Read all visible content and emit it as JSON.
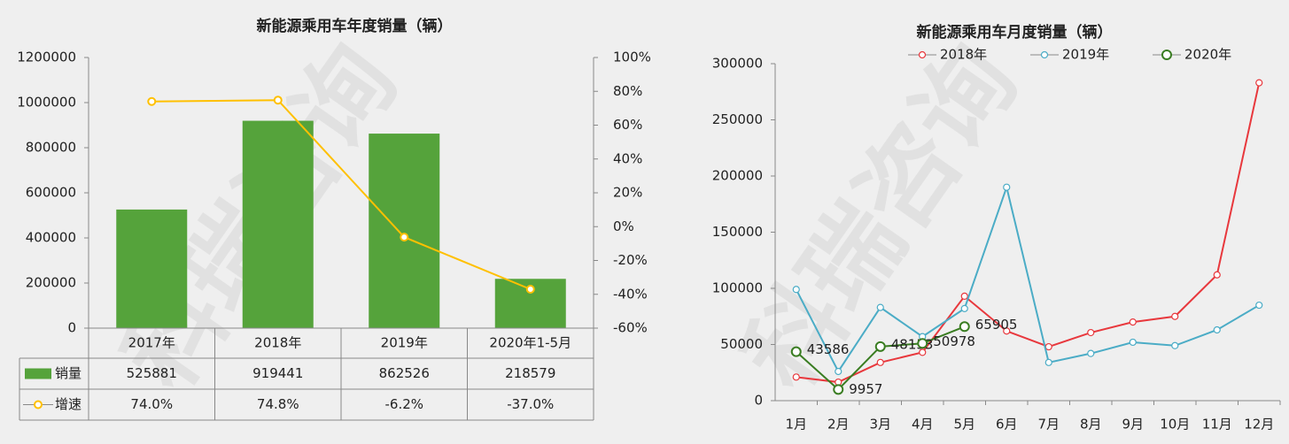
{
  "watermark": "科瑞咨询",
  "chart_data": [
    {
      "type": "bar",
      "title": "新能源乘用车年度销量（辆）",
      "categories": [
        "2017年",
        "2018年",
        "2019年",
        "2020年1-5月"
      ],
      "series": [
        {
          "name": "销量",
          "type": "bar",
          "color": "#55a33b",
          "values": [
            525881,
            919441,
            862526,
            218579
          ]
        },
        {
          "name": "增速",
          "type": "line",
          "axis": "y2",
          "color": "#ffc000",
          "values": [
            74.0,
            74.8,
            -6.2,
            -37.0
          ],
          "value_labels": [
            "74.0%",
            "74.8%",
            "-6.2%",
            "-37.0%"
          ]
        }
      ],
      "ylim": [
        0,
        1200000
      ],
      "yticks": [
        0,
        200000,
        400000,
        600000,
        800000,
        1000000,
        1200000
      ],
      "y2lim": [
        -60,
        100
      ],
      "y2ticks": [
        {
          "value": -60,
          "label": "-60%"
        },
        {
          "value": -40,
          "label": "-40%"
        },
        {
          "value": -20,
          "label": "-20%"
        },
        {
          "value": 0,
          "label": "0%"
        },
        {
          "value": 20,
          "label": "20%"
        },
        {
          "value": 40,
          "label": "40%"
        },
        {
          "value": 60,
          "label": "60%"
        },
        {
          "value": 80,
          "label": "80%"
        },
        {
          "value": 100,
          "label": "100%"
        }
      ],
      "data_table": true,
      "grid": false
    },
    {
      "type": "line",
      "title": "新能源乘用车月度销量（辆）",
      "categories": [
        "1月",
        "2月",
        "3月",
        "4月",
        "5月",
        "6月",
        "7月",
        "8月",
        "9月",
        "10月",
        "11月",
        "12月"
      ],
      "series": [
        {
          "name": "2018年",
          "color": "#e8383d",
          "values": [
            21000,
            16500,
            34000,
            43000,
            93000,
            62000,
            48000,
            60600,
            70000,
            75000,
            112000,
            283000
          ]
        },
        {
          "name": "2019年",
          "color": "#4bacc6",
          "values": [
            99000,
            26000,
            83000,
            57000,
            82000,
            190000,
            34000,
            42000,
            52000,
            49000,
            63000,
            85000
          ]
        },
        {
          "name": "2020年",
          "color": "#3a7d22",
          "data_labels": true,
          "values": [
            43586,
            9957,
            48153,
            50978,
            65905,
            null,
            null,
            null,
            null,
            null,
            null,
            null
          ]
        }
      ],
      "ylim": [
        0,
        300000
      ],
      "yticks": [
        0,
        50000,
        100000,
        150000,
        200000,
        250000,
        300000
      ],
      "legend": "top",
      "grid": false
    }
  ]
}
